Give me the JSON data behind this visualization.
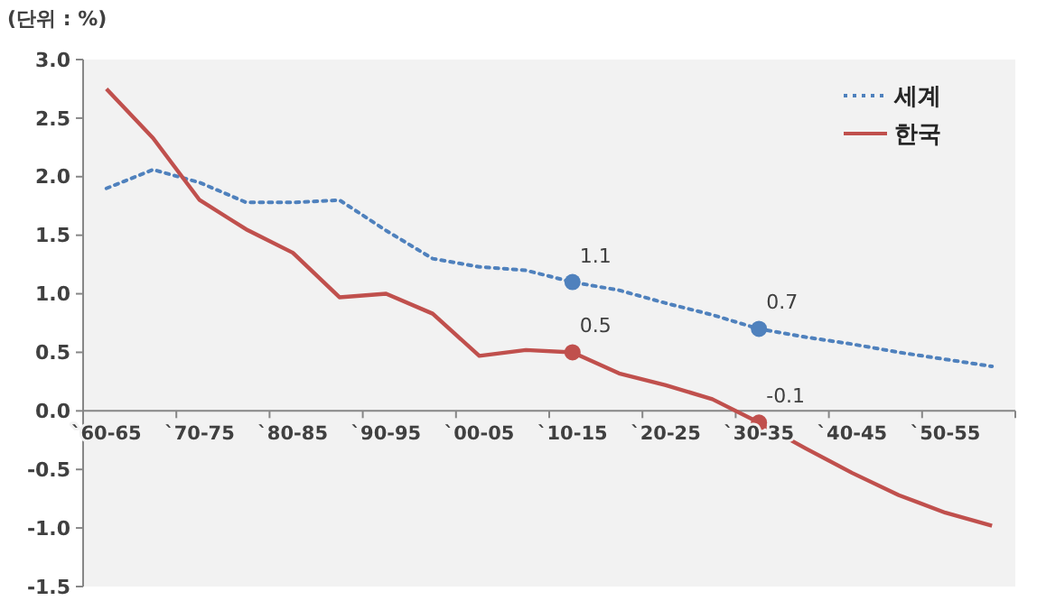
{
  "chart_data": {
    "type": "line",
    "annotations": [
      "(단위 : %)"
    ],
    "categories": [
      "`60-65",
      null,
      "`70-75",
      null,
      "`80-85",
      null,
      "`90-95",
      null,
      "`00-05",
      null,
      "`10-15",
      null,
      "`20-25",
      null,
      "`30-35",
      null,
      "`40-45",
      null,
      "`50-55",
      null
    ],
    "series": [
      {
        "name": "세계",
        "color": "#4f81bd",
        "line_style": "dotted",
        "values": [
          1.9,
          2.06,
          1.95,
          1.78,
          1.78,
          1.8,
          1.54,
          1.3,
          1.23,
          1.2,
          1.1,
          1.03,
          0.92,
          0.82,
          0.7,
          0.63,
          0.57,
          0.5,
          0.44,
          0.38
        ],
        "value_labels": [
          null,
          null,
          null,
          null,
          null,
          null,
          null,
          null,
          null,
          null,
          "1.1",
          null,
          null,
          null,
          "0.7",
          null,
          null,
          null,
          null,
          null
        ]
      },
      {
        "name": "한국",
        "color": "#c0504d",
        "line_style": "solid",
        "values": [
          2.75,
          2.33,
          1.8,
          1.55,
          1.35,
          0.97,
          1.0,
          0.83,
          0.47,
          0.52,
          0.5,
          0.32,
          0.22,
          0.1,
          -0.1,
          -0.32,
          -0.53,
          -0.72,
          -0.87,
          -0.98
        ],
        "value_labels": [
          null,
          null,
          null,
          null,
          null,
          null,
          null,
          null,
          null,
          null,
          "0.5",
          null,
          null,
          null,
          "-0.1",
          null,
          null,
          null,
          null,
          null
        ]
      }
    ],
    "ylim": [
      -1.5,
      3.0
    ],
    "yticks": [
      {
        "value": -1.5,
        "label": "-1.5"
      },
      {
        "value": -1,
        "label": "-1.0"
      },
      {
        "value": -0.5,
        "label": "-0.5"
      },
      {
        "value": 0,
        "label": "0.0"
      },
      {
        "value": 0.5,
        "label": "0.5"
      },
      {
        "value": 1,
        "label": "1.0"
      },
      {
        "value": 1.5,
        "label": "1.5"
      },
      {
        "value": 2,
        "label": "2.0"
      },
      {
        "value": 2.5,
        "label": "2.5"
      },
      {
        "value": 3,
        "label": "3.0"
      }
    ],
    "grid": false,
    "legend": "top right"
  }
}
